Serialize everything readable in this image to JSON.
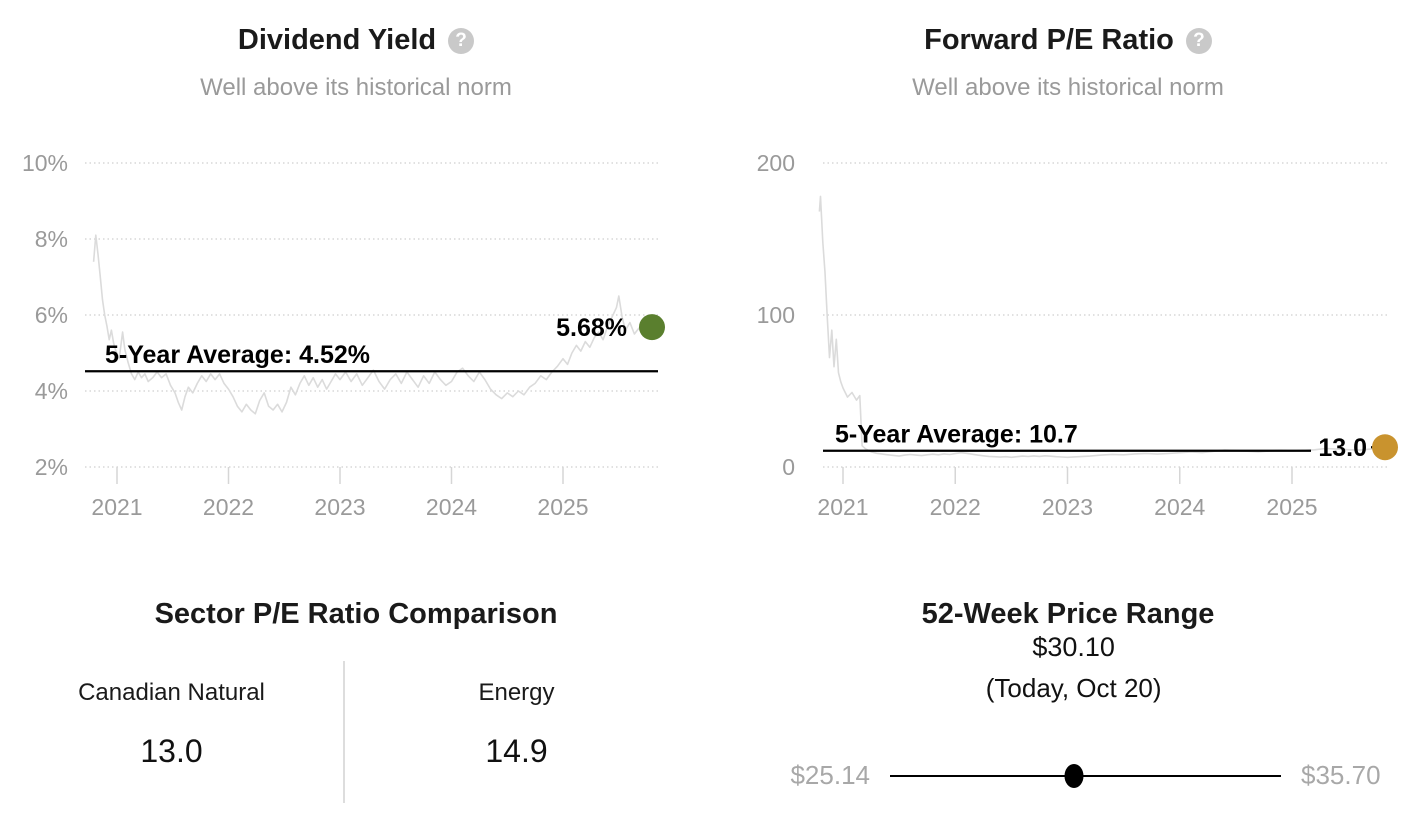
{
  "chart_data": [
    {
      "type": "line",
      "title": "Dividend Yield",
      "subtitle": "Well above its historical norm",
      "help_icon": "question-mark",
      "average_label": "5-Year Average: 4.52%",
      "average_value": 4.52,
      "current_label": "5.68%",
      "current_value": 5.68,
      "dot_color": "#5a7f2e",
      "line_color": "#dbdbdb",
      "ylim": [
        2,
        10
      ],
      "y_ticks": [
        {
          "v": 10,
          "label": "10%"
        },
        {
          "v": 8,
          "label": "8%"
        },
        {
          "v": 6,
          "label": "6%"
        },
        {
          "v": 4,
          "label": "4%"
        },
        {
          "v": 2,
          "label": "2%"
        }
      ],
      "x_ticks": [
        2021,
        2022,
        2023,
        2024,
        2025
      ],
      "xlabel": "",
      "ylabel": "",
      "grid": "dotted",
      "legend": "none",
      "series": [
        [
          2020.79,
          7.4
        ],
        [
          2020.81,
          8.1
        ],
        [
          2020.83,
          7.6
        ],
        [
          2020.85,
          7.0
        ],
        [
          2020.87,
          6.4
        ],
        [
          2020.89,
          6.0
        ],
        [
          2020.91,
          5.7
        ],
        [
          2020.93,
          5.35
        ],
        [
          2020.95,
          5.6
        ],
        [
          2020.97,
          5.25
        ],
        [
          2020.99,
          5.05
        ],
        [
          2021.02,
          4.85
        ],
        [
          2021.05,
          5.55
        ],
        [
          2021.07,
          5.1
        ],
        [
          2021.1,
          4.75
        ],
        [
          2021.13,
          4.45
        ],
        [
          2021.16,
          4.3
        ],
        [
          2021.19,
          4.5
        ],
        [
          2021.22,
          4.35
        ],
        [
          2021.25,
          4.45
        ],
        [
          2021.28,
          4.25
        ],
        [
          2021.32,
          4.35
        ],
        [
          2021.36,
          4.5
        ],
        [
          2021.4,
          4.35
        ],
        [
          2021.44,
          4.45
        ],
        [
          2021.48,
          4.15
        ],
        [
          2021.52,
          3.95
        ],
        [
          2021.55,
          3.7
        ],
        [
          2021.58,
          3.5
        ],
        [
          2021.61,
          3.85
        ],
        [
          2021.64,
          4.1
        ],
        [
          2021.68,
          3.95
        ],
        [
          2021.72,
          4.2
        ],
        [
          2021.76,
          4.4
        ],
        [
          2021.8,
          4.25
        ],
        [
          2021.84,
          4.45
        ],
        [
          2021.88,
          4.3
        ],
        [
          2021.92,
          4.45
        ],
        [
          2021.96,
          4.2
        ],
        [
          2022.0,
          4.05
        ],
        [
          2022.04,
          3.85
        ],
        [
          2022.08,
          3.6
        ],
        [
          2022.12,
          3.45
        ],
        [
          2022.16,
          3.65
        ],
        [
          2022.2,
          3.5
        ],
        [
          2022.24,
          3.4
        ],
        [
          2022.28,
          3.75
        ],
        [
          2022.32,
          3.95
        ],
        [
          2022.36,
          3.6
        ],
        [
          2022.4,
          3.5
        ],
        [
          2022.44,
          3.65
        ],
        [
          2022.48,
          3.45
        ],
        [
          2022.52,
          3.7
        ],
        [
          2022.56,
          4.1
        ],
        [
          2022.6,
          3.9
        ],
        [
          2022.64,
          4.2
        ],
        [
          2022.68,
          4.4
        ],
        [
          2022.72,
          4.15
        ],
        [
          2022.76,
          4.35
        ],
        [
          2022.8,
          4.1
        ],
        [
          2022.84,
          4.3
        ],
        [
          2022.88,
          4.05
        ],
        [
          2022.92,
          4.25
        ],
        [
          2022.96,
          4.45
        ],
        [
          2023.0,
          4.3
        ],
        [
          2023.05,
          4.5
        ],
        [
          2023.1,
          4.25
        ],
        [
          2023.15,
          4.45
        ],
        [
          2023.2,
          4.15
        ],
        [
          2023.25,
          4.35
        ],
        [
          2023.3,
          4.55
        ],
        [
          2023.35,
          4.25
        ],
        [
          2023.4,
          4.05
        ],
        [
          2023.45,
          4.3
        ],
        [
          2023.5,
          4.45
        ],
        [
          2023.55,
          4.2
        ],
        [
          2023.6,
          4.5
        ],
        [
          2023.65,
          4.3
        ],
        [
          2023.7,
          4.1
        ],
        [
          2023.75,
          4.4
        ],
        [
          2023.8,
          4.2
        ],
        [
          2023.85,
          4.5
        ],
        [
          2023.9,
          4.3
        ],
        [
          2023.95,
          4.15
        ],
        [
          2024.0,
          4.25
        ],
        [
          2024.05,
          4.5
        ],
        [
          2024.1,
          4.6
        ],
        [
          2024.15,
          4.4
        ],
        [
          2024.2,
          4.25
        ],
        [
          2024.25,
          4.5
        ],
        [
          2024.3,
          4.3
        ],
        [
          2024.35,
          4.05
        ],
        [
          2024.4,
          3.9
        ],
        [
          2024.45,
          3.8
        ],
        [
          2024.5,
          3.95
        ],
        [
          2024.55,
          3.85
        ],
        [
          2024.6,
          4.0
        ],
        [
          2024.65,
          3.9
        ],
        [
          2024.7,
          4.1
        ],
        [
          2024.75,
          4.2
        ],
        [
          2024.8,
          4.4
        ],
        [
          2024.85,
          4.3
        ],
        [
          2024.9,
          4.5
        ],
        [
          2024.95,
          4.65
        ],
        [
          2025.0,
          4.85
        ],
        [
          2025.04,
          4.7
        ],
        [
          2025.08,
          5.0
        ],
        [
          2025.12,
          5.2
        ],
        [
          2025.16,
          5.05
        ],
        [
          2025.2,
          5.3
        ],
        [
          2025.24,
          5.15
        ],
        [
          2025.28,
          5.4
        ],
        [
          2025.32,
          5.55
        ],
        [
          2025.36,
          5.35
        ],
        [
          2025.4,
          5.7
        ],
        [
          2025.44,
          5.95
        ],
        [
          2025.48,
          6.2
        ],
        [
          2025.5,
          6.5
        ],
        [
          2025.53,
          5.95
        ],
        [
          2025.56,
          5.6
        ],
        [
          2025.6,
          5.8
        ],
        [
          2025.64,
          5.5
        ],
        [
          2025.68,
          5.65
        ],
        [
          2025.72,
          5.45
        ],
        [
          2025.76,
          5.6
        ],
        [
          2025.8,
          5.68
        ]
      ]
    },
    {
      "type": "line",
      "title": "Forward P/E Ratio",
      "subtitle": "Well above its historical norm",
      "help_icon": "question-mark",
      "average_label": "5-Year Average: 10.7",
      "average_value": 10.7,
      "current_label": "13.0",
      "current_value": 13.0,
      "dot_color": "#c9932e",
      "line_color": "#dbdbdb",
      "ylim": [
        0,
        200
      ],
      "y_ticks": [
        {
          "v": 200,
          "label": "200"
        },
        {
          "v": 100,
          "label": "100"
        },
        {
          "v": 0,
          "label": "0"
        }
      ],
      "x_ticks": [
        2021,
        2022,
        2023,
        2024,
        2025
      ],
      "xlabel": "",
      "ylabel": "",
      "grid": "dotted",
      "legend": "none",
      "series": [
        [
          2020.79,
          168
        ],
        [
          2020.8,
          178
        ],
        [
          2020.82,
          148
        ],
        [
          2020.84,
          128
        ],
        [
          2020.86,
          98
        ],
        [
          2020.88,
          72
        ],
        [
          2020.9,
          90
        ],
        [
          2020.92,
          66
        ],
        [
          2020.94,
          84
        ],
        [
          2020.96,
          62
        ],
        [
          2020.98,
          56
        ],
        [
          2021.0,
          52
        ],
        [
          2021.04,
          46
        ],
        [
          2021.08,
          49
        ],
        [
          2021.12,
          44
        ],
        [
          2021.15,
          47
        ],
        [
          2021.17,
          14
        ],
        [
          2021.2,
          12
        ],
        [
          2021.25,
          10
        ],
        [
          2021.3,
          9
        ],
        [
          2021.35,
          8.5
        ],
        [
          2021.4,
          8
        ],
        [
          2021.45,
          7.6
        ],
        [
          2021.5,
          7.2
        ],
        [
          2021.55,
          7.8
        ],
        [
          2021.6,
          8.2
        ],
        [
          2021.65,
          7.8
        ],
        [
          2021.7,
          7.5
        ],
        [
          2021.75,
          8
        ],
        [
          2021.8,
          8.4
        ],
        [
          2021.85,
          8
        ],
        [
          2021.9,
          8.6
        ],
        [
          2021.95,
          8.2
        ],
        [
          2022.0,
          8.8
        ],
        [
          2022.05,
          9.4
        ],
        [
          2022.1,
          9
        ],
        [
          2022.15,
          8.4
        ],
        [
          2022.2,
          7.8
        ],
        [
          2022.25,
          7.4
        ],
        [
          2022.3,
          7
        ],
        [
          2022.35,
          6.8
        ],
        [
          2022.4,
          6.5
        ],
        [
          2022.45,
          6.8
        ],
        [
          2022.5,
          6.4
        ],
        [
          2022.55,
          6.8
        ],
        [
          2022.6,
          7.2
        ],
        [
          2022.65,
          6.9
        ],
        [
          2022.7,
          7.3
        ],
        [
          2022.75,
          7
        ],
        [
          2022.8,
          7.4
        ],
        [
          2022.85,
          7.1
        ],
        [
          2022.9,
          6.8
        ],
        [
          2022.95,
          6.6
        ],
        [
          2023.0,
          6.4
        ],
        [
          2023.1,
          6.8
        ],
        [
          2023.2,
          7.2
        ],
        [
          2023.3,
          7.8
        ],
        [
          2023.4,
          8.3
        ],
        [
          2023.5,
          8
        ],
        [
          2023.6,
          8.6
        ],
        [
          2023.7,
          8.9
        ],
        [
          2023.8,
          8.5
        ],
        [
          2023.9,
          8.9
        ],
        [
          2024.0,
          9.4
        ],
        [
          2024.1,
          9.9
        ],
        [
          2024.2,
          9.5
        ],
        [
          2024.3,
          10.3
        ],
        [
          2024.4,
          11.2
        ],
        [
          2024.5,
          10.8
        ],
        [
          2024.6,
          10.4
        ],
        [
          2024.7,
          10
        ],
        [
          2024.8,
          10.5
        ],
        [
          2024.9,
          10.9
        ],
        [
          2025.0,
          10.5
        ],
        [
          2025.1,
          10.9
        ],
        [
          2025.2,
          11.3
        ],
        [
          2025.3,
          12.2
        ],
        [
          2025.4,
          11.8
        ],
        [
          2025.5,
          11.4
        ],
        [
          2025.6,
          11.1
        ],
        [
          2025.7,
          11.8
        ],
        [
          2025.75,
          12.4
        ],
        [
          2025.8,
          13.0
        ]
      ]
    }
  ],
  "sector_comparison": {
    "title": "Sector P/E Ratio Comparison",
    "columns": [
      {
        "label": "Canadian Natural",
        "value": "13.0"
      },
      {
        "label": "Energy",
        "value": "14.9"
      }
    ]
  },
  "price_range": {
    "title": "52-Week Price Range",
    "current_label": "$30.10",
    "current_sublabel": "(Today, Oct 20)",
    "low_label": "$25.14",
    "high_label": "$35.70",
    "low": 25.14,
    "high": 35.7,
    "current": 30.1
  },
  "colors": {
    "series_line": "#dbdbdb",
    "average_line": "#000000",
    "grid": "#cfcfcf",
    "axis_text": "#9a9a9a",
    "dividend_dot": "#5a7f2e",
    "pe_dot": "#c9932e"
  }
}
